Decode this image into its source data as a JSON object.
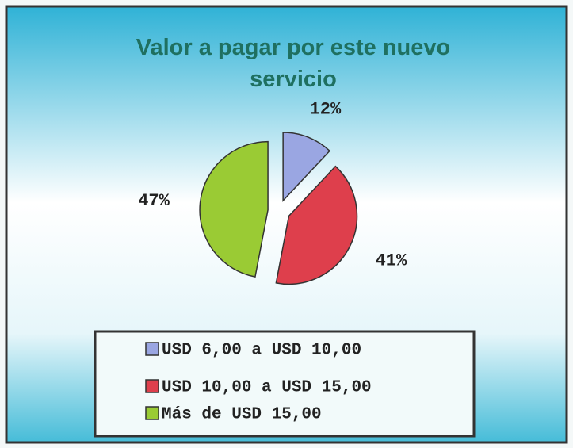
{
  "chart_data": {
    "type": "pie",
    "title": "Valor a pagar por este nuevo servicio",
    "categories": [
      "USD 6,00 a USD 10,00",
      "USD 10,00 a USD 15,00",
      "Más de USD 15,00"
    ],
    "values": [
      12,
      41,
      47
    ],
    "value_labels": [
      "12%",
      "41%",
      "47%"
    ],
    "colors": [
      "#9aa6e2",
      "#de3f4c",
      "#9acb34"
    ],
    "legend": "bottom"
  }
}
